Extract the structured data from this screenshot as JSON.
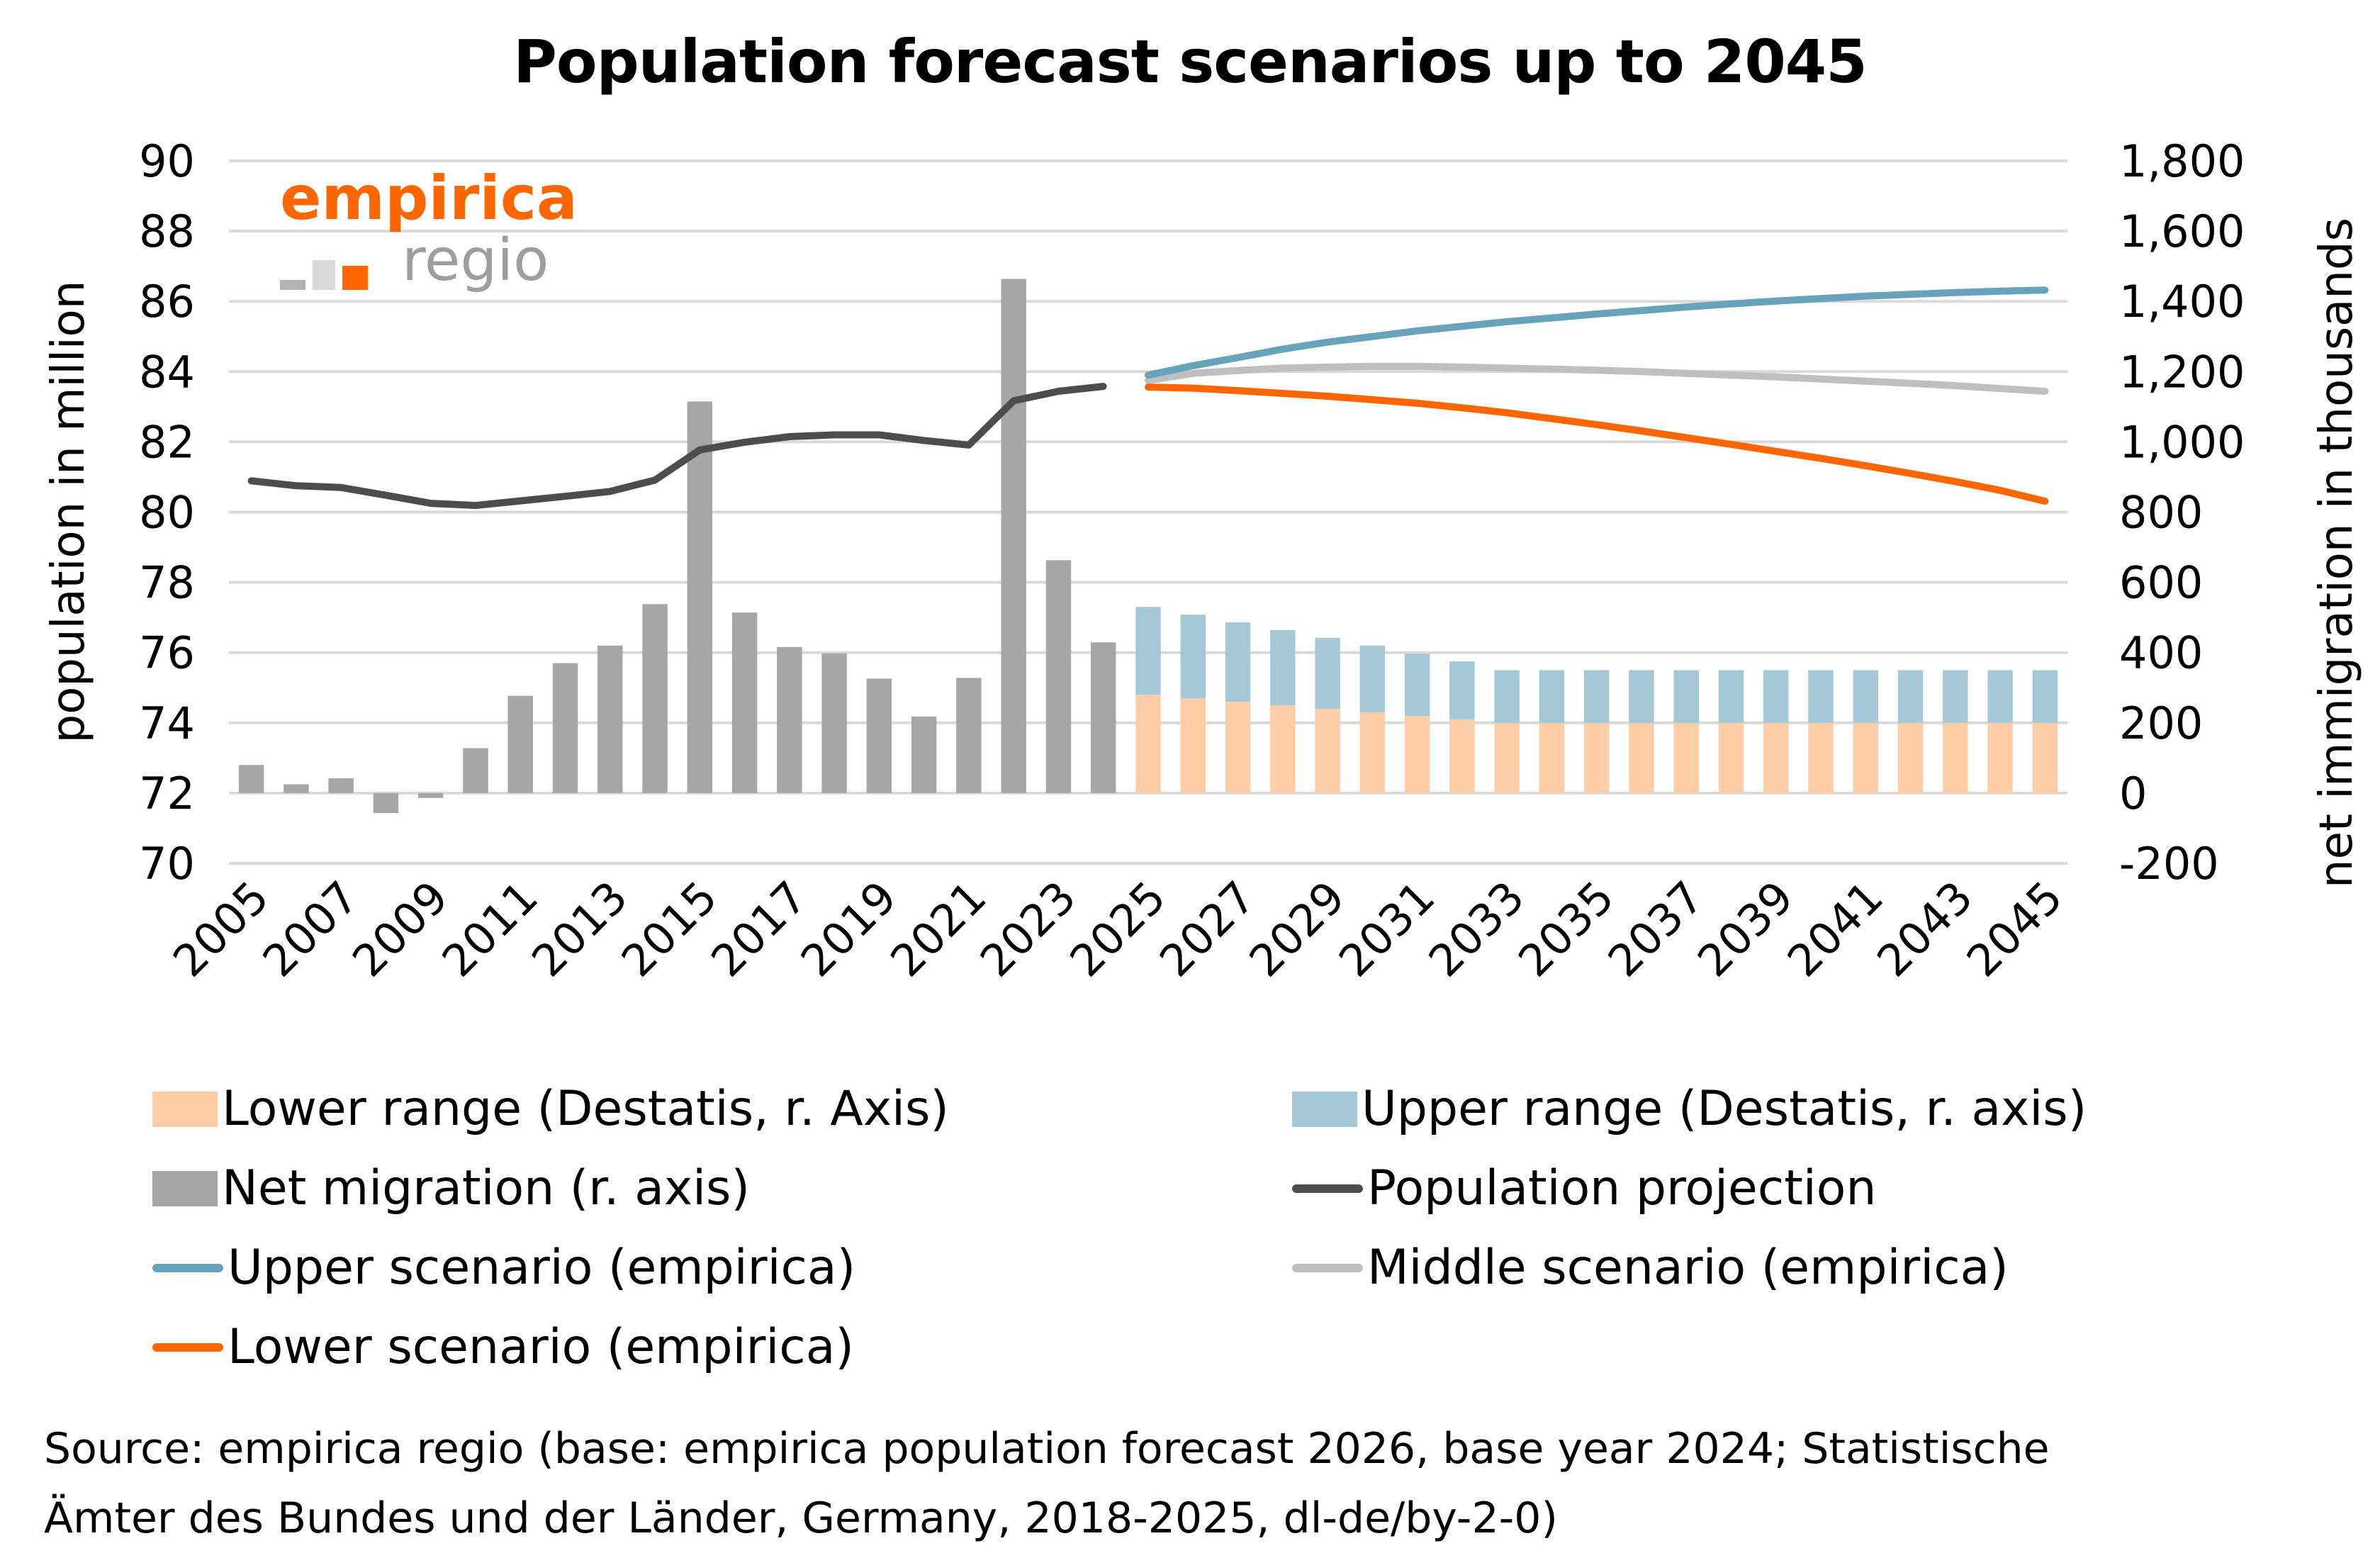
{
  "chart_data": {
    "type": "bar",
    "title": "Population forecast scenarios up to 2045",
    "ylabel": "population in million",
    "y2label": "net immigration in thousands",
    "ylim": [
      70,
      90
    ],
    "y2lim": [
      -200,
      1800
    ],
    "yticks": [
      "90",
      "88",
      "86",
      "84",
      "82",
      "80",
      "78",
      "76",
      "74",
      "72",
      "70"
    ],
    "y2ticks": [
      "1,800",
      "1,600",
      "1,400",
      "1,200",
      "1,000",
      "800",
      "600",
      "400",
      "200",
      "0",
      "-200"
    ],
    "grid": true,
    "legend_position": "bottom",
    "years": [
      2005,
      2006,
      2007,
      2008,
      2009,
      2010,
      2011,
      2012,
      2013,
      2014,
      2015,
      2016,
      2017,
      2018,
      2019,
      2020,
      2021,
      2022,
      2023,
      2024,
      2025,
      2026,
      2027,
      2028,
      2029,
      2030,
      2031,
      2032,
      2033,
      2034,
      2035,
      2036,
      2037,
      2038,
      2039,
      2040,
      2041,
      2042,
      2043,
      2044,
      2045
    ],
    "xtick_labels": [
      "2005",
      "2007",
      "2009",
      "2011",
      "2013",
      "2015",
      "2017",
      "2019",
      "2021",
      "2023",
      "2025",
      "2027",
      "2029",
      "2031",
      "2033",
      "2035",
      "2037",
      "2039",
      "2041",
      "2043",
      "2045"
    ],
    "series": [
      {
        "name": "Net migration (r. axis)",
        "kind": "bar",
        "axis": "right",
        "color": "#a6a6a6",
        "x": [
          2005,
          2006,
          2007,
          2008,
          2009,
          2010,
          2011,
          2012,
          2013,
          2014,
          2015,
          2016,
          2017,
          2018,
          2019,
          2020,
          2021,
          2022,
          2023,
          2024
        ],
        "values": [
          80,
          25,
          42,
          -57,
          -14,
          128,
          277,
          370,
          420,
          538,
          1115,
          514,
          416,
          398,
          326,
          218,
          328,
          1464,
          663,
          429
        ]
      },
      {
        "name": "Lower range (Destatis, r. Axis)",
        "kind": "stacked-bar",
        "axis": "right",
        "color": "#fccda6",
        "x": [
          2025,
          2026,
          2027,
          2028,
          2029,
          2030,
          2031,
          2032,
          2033,
          2034,
          2035,
          2036,
          2037,
          2038,
          2039,
          2040,
          2041,
          2042,
          2043,
          2044,
          2045
        ],
        "values": [
          280,
          270,
          260,
          250,
          240,
          230,
          220,
          210,
          200,
          200,
          200,
          200,
          200,
          200,
          200,
          200,
          200,
          200,
          200,
          200,
          200
        ]
      },
      {
        "name": "Upper range (Destatis, r. axis)",
        "kind": "stacked-bar-top",
        "axis": "right",
        "color": "#a5c8d6",
        "x": [
          2025,
          2026,
          2027,
          2028,
          2029,
          2030,
          2031,
          2032,
          2033,
          2034,
          2035,
          2036,
          2037,
          2038,
          2039,
          2040,
          2041,
          2042,
          2043,
          2044,
          2045
        ],
        "values": [
          530,
          508,
          486,
          464,
          442,
          420,
          397,
          375,
          350,
          350,
          350,
          350,
          350,
          350,
          350,
          350,
          350,
          350,
          350,
          350,
          350
        ]
      },
      {
        "name": "Population projection",
        "kind": "line",
        "axis": "left",
        "color": "#4d4d4d",
        "x": [
          2005,
          2006,
          2007,
          2008,
          2009,
          2010,
          2011,
          2012,
          2013,
          2014,
          2015,
          2016,
          2017,
          2018,
          2019,
          2020,
          2021,
          2022,
          2023,
          2024
        ],
        "values": [
          80.89,
          80.75,
          80.7,
          80.48,
          80.25,
          80.19,
          80.32,
          80.45,
          80.59,
          80.91,
          81.77,
          81.99,
          82.15,
          82.2,
          82.2,
          82.04,
          81.91,
          83.17,
          83.44,
          83.58
        ]
      },
      {
        "name": "Upper scenario (empirica)",
        "kind": "line",
        "axis": "left",
        "color": "#67a3ba",
        "x": [
          2025,
          2026,
          2027,
          2028,
          2029,
          2030,
          2031,
          2032,
          2033,
          2034,
          2035,
          2036,
          2037,
          2038,
          2039,
          2040,
          2041,
          2042,
          2043,
          2044,
          2045
        ],
        "values": [
          83.9,
          84.17,
          84.4,
          84.64,
          84.84,
          85.0,
          85.16,
          85.29,
          85.42,
          85.53,
          85.64,
          85.74,
          85.84,
          85.93,
          86.01,
          86.08,
          86.15,
          86.2,
          86.25,
          86.29,
          86.32
        ]
      },
      {
        "name": "Middle scenario (empirica)",
        "kind": "line",
        "axis": "left",
        "color": "#bfbfbf",
        "x": [
          2025,
          2026,
          2027,
          2028,
          2029,
          2030,
          2031,
          2032,
          2033,
          2034,
          2035,
          2036,
          2037,
          2038,
          2039,
          2040,
          2041,
          2042,
          2043,
          2044,
          2045
        ],
        "values": [
          83.75,
          83.95,
          84.03,
          84.1,
          84.13,
          84.15,
          84.15,
          84.13,
          84.1,
          84.07,
          84.04,
          84.0,
          83.95,
          83.9,
          83.85,
          83.79,
          83.73,
          83.67,
          83.6,
          83.52,
          83.44
        ]
      },
      {
        "name": "Lower scenario (empirica)",
        "kind": "line",
        "axis": "left",
        "color": "#ff6600",
        "x": [
          2025,
          2026,
          2027,
          2028,
          2029,
          2030,
          2031,
          2032,
          2033,
          2034,
          2035,
          2036,
          2037,
          2038,
          2039,
          2040,
          2041,
          2042,
          2043,
          2044,
          2045
        ],
        "values": [
          83.56,
          83.53,
          83.46,
          83.38,
          83.3,
          83.2,
          83.1,
          82.97,
          82.83,
          82.66,
          82.49,
          82.31,
          82.12,
          81.93,
          81.73,
          81.53,
          81.32,
          81.1,
          80.87,
          80.62,
          80.31
        ]
      }
    ]
  },
  "logo": {
    "brand": "empirica",
    "sub": "regio",
    "colors": [
      "#b3b3b3",
      "#d9d9d9",
      "#ff6600"
    ]
  },
  "legend": [
    {
      "label": "Lower range (Destatis, r. Axis)",
      "type": "box",
      "color": "#fccda6"
    },
    {
      "label": "Upper range (Destatis, r. axis)",
      "type": "box",
      "color": "#a5c8d6"
    },
    {
      "label": "Net migration (r. axis)",
      "type": "box",
      "color": "#a6a6a6"
    },
    {
      "label": "Population projection",
      "type": "line",
      "color": "#4d4d4d"
    },
    {
      "label": "Upper scenario (empirica)",
      "type": "line",
      "color": "#67a3ba"
    },
    {
      "label": "Middle scenario (empirica)",
      "type": "line",
      "color": "#bfbfbf"
    },
    {
      "label": "Lower scenario (empirica)",
      "type": "line",
      "color": "#ff6600"
    }
  ],
  "source": {
    "line1": "Source: empirica regio (base: empirica population forecast 2026, base year 2024; Statistische",
    "line2": "Ämter des Bundes und der Länder, Germany, 2018-2025, dl-de/by-2-0)"
  }
}
